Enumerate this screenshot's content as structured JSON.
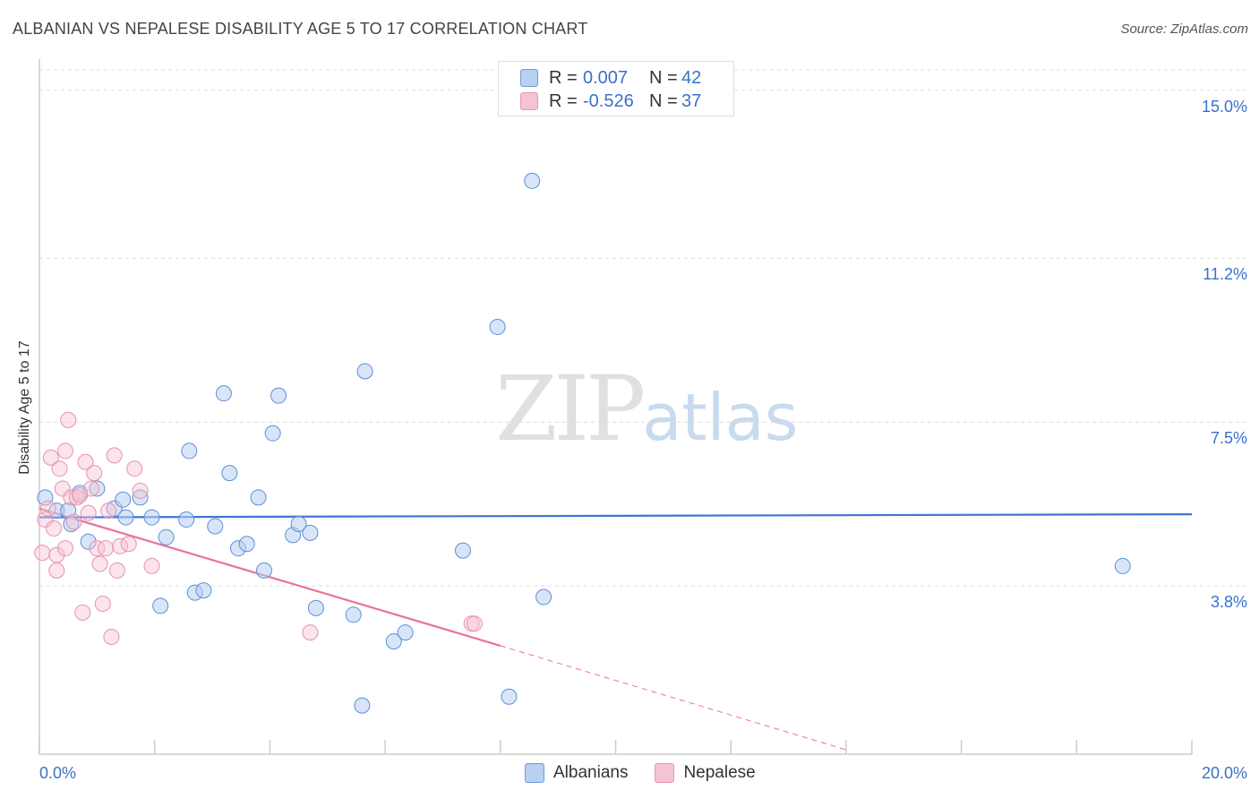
{
  "title": "ALBANIAN VS NEPALESE DISABILITY AGE 5 TO 17 CORRELATION CHART",
  "source": "Source: ZipAtlas.com",
  "watermark": {
    "zip": "ZIP",
    "atlas": "atlas"
  },
  "colors": {
    "blue": "#3a78d4",
    "blue_fill": "#b8d0f2",
    "pink": "#e8729a",
    "pink_fill": "#f6c3d3"
  },
  "legend": {
    "rows": [
      {
        "swatch": "blue",
        "r_label": "R =",
        "r_value": "0.007",
        "n_label": "N =",
        "n_value": "42"
      },
      {
        "swatch": "pink",
        "r_label": "R =",
        "r_value": "-0.526",
        "n_label": "N =",
        "n_value": "37"
      }
    ]
  },
  "bottom_legend": {
    "albanians": "Albanians",
    "nepalese": "Nepalese"
  },
  "chart_data": {
    "type": "scatter",
    "title": "ALBANIAN VS NEPALESE DISABILITY AGE 5 TO 17 CORRELATION CHART",
    "xlabel": "",
    "ylabel": "Disability Age 5 to 17",
    "xlim": [
      0,
      20
    ],
    "ylim": [
      0,
      15.7
    ],
    "x_tick_labels": [
      "0.0%",
      "20.0%"
    ],
    "y_ticks": [
      3.8,
      7.5,
      11.2,
      15.0
    ],
    "y_tick_labels": [
      "3.8%",
      "7.5%",
      "11.2%",
      "15.0%"
    ],
    "series": [
      {
        "name": "Albanians",
        "color": "#3a78d4",
        "points": [
          [
            0.1,
            5.8
          ],
          [
            0.3,
            5.5
          ],
          [
            0.5,
            5.5
          ],
          [
            0.55,
            5.2
          ],
          [
            0.7,
            5.9
          ],
          [
            0.85,
            4.8
          ],
          [
            1.0,
            6.0
          ],
          [
            1.3,
            5.55
          ],
          [
            1.45,
            5.75
          ],
          [
            1.5,
            5.35
          ],
          [
            1.75,
            5.8
          ],
          [
            1.95,
            5.35
          ],
          [
            2.1,
            3.35
          ],
          [
            2.2,
            4.9
          ],
          [
            2.55,
            5.3
          ],
          [
            2.6,
            6.85
          ],
          [
            2.7,
            3.65
          ],
          [
            2.85,
            3.7
          ],
          [
            3.05,
            5.15
          ],
          [
            3.2,
            8.15
          ],
          [
            3.3,
            6.35
          ],
          [
            3.45,
            4.65
          ],
          [
            3.6,
            4.75
          ],
          [
            3.8,
            5.8
          ],
          [
            3.9,
            4.15
          ],
          [
            4.05,
            7.25
          ],
          [
            4.15,
            8.1
          ],
          [
            4.4,
            4.95
          ],
          [
            4.5,
            5.2
          ],
          [
            4.7,
            5.0
          ],
          [
            4.8,
            3.3
          ],
          [
            5.45,
            3.15
          ],
          [
            5.6,
            1.1
          ],
          [
            5.65,
            8.65
          ],
          [
            6.15,
            2.55
          ],
          [
            6.35,
            2.75
          ],
          [
            7.35,
            4.6
          ],
          [
            7.95,
            9.65
          ],
          [
            8.15,
            1.3
          ],
          [
            8.55,
            12.95
          ],
          [
            8.75,
            3.55
          ],
          [
            18.8,
            4.25
          ]
        ]
      },
      {
        "name": "Nepalese",
        "color": "#e8729a",
        "points": [
          [
            0.05,
            4.55
          ],
          [
            0.1,
            5.3
          ],
          [
            0.15,
            5.55
          ],
          [
            0.2,
            6.7
          ],
          [
            0.25,
            5.1
          ],
          [
            0.3,
            4.5
          ],
          [
            0.3,
            4.15
          ],
          [
            0.35,
            6.45
          ],
          [
            0.4,
            6.0
          ],
          [
            0.45,
            6.85
          ],
          [
            0.45,
            4.65
          ],
          [
            0.5,
            7.55
          ],
          [
            0.55,
            5.8
          ],
          [
            0.6,
            5.25
          ],
          [
            0.65,
            5.8
          ],
          [
            0.7,
            5.85
          ],
          [
            0.75,
            3.2
          ],
          [
            0.8,
            6.6
          ],
          [
            0.85,
            5.45
          ],
          [
            0.9,
            6.0
          ],
          [
            0.95,
            6.35
          ],
          [
            1.0,
            4.65
          ],
          [
            1.05,
            4.3
          ],
          [
            1.1,
            3.4
          ],
          [
            1.15,
            4.65
          ],
          [
            1.2,
            5.5
          ],
          [
            1.25,
            2.65
          ],
          [
            1.3,
            6.75
          ],
          [
            1.35,
            4.15
          ],
          [
            1.4,
            4.7
          ],
          [
            1.55,
            4.75
          ],
          [
            1.65,
            6.45
          ],
          [
            1.75,
            5.95
          ],
          [
            1.95,
            4.25
          ],
          [
            4.7,
            2.75
          ],
          [
            7.5,
            2.95
          ],
          [
            7.55,
            2.95
          ]
        ]
      }
    ],
    "trend_lines": [
      {
        "series": "Albanians",
        "from": [
          0,
          5.35
        ],
        "to": [
          20,
          5.42
        ]
      },
      {
        "series": "Nepalese",
        "from": [
          0,
          5.55
        ],
        "to": [
          8,
          2.45
        ],
        "dashed_to": [
          14,
          0.1
        ]
      }
    ]
  }
}
